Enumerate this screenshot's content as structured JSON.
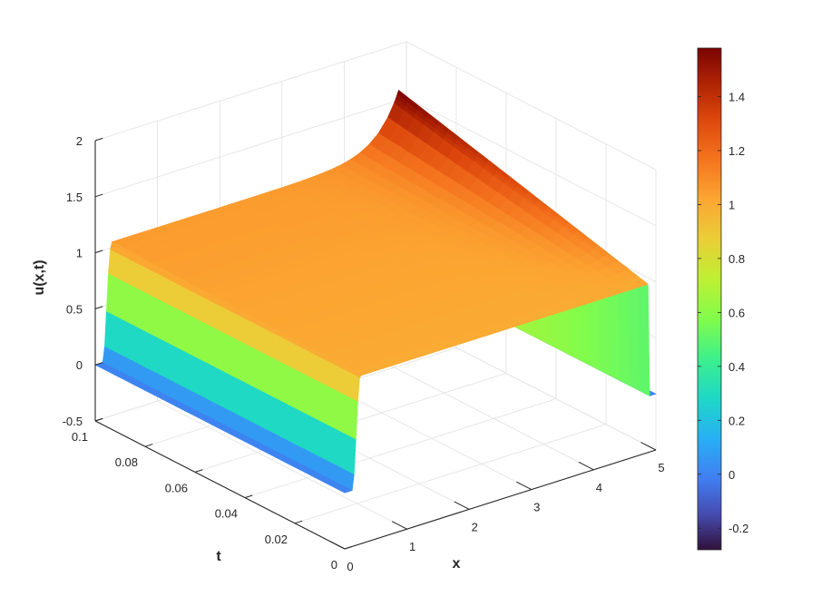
{
  "chart_data": {
    "type": "surface",
    "title": "",
    "xlabel": "x",
    "ylabel": "t",
    "zlabel": "u(x,t)",
    "xlim": [
      0,
      5
    ],
    "ylim": [
      0,
      0.1
    ],
    "zlim": [
      -0.5,
      2
    ],
    "x_ticks": [
      "0",
      "1",
      "2",
      "3",
      "4",
      "5"
    ],
    "t_ticks": [
      "0",
      "0.02",
      "0.04",
      "0.06",
      "0.08",
      "0.1"
    ],
    "z_ticks": [
      "-0.5",
      "0",
      "0.5",
      "1",
      "1.5",
      "2"
    ],
    "grid": true,
    "colormap": "turbo",
    "colorbar": {
      "range": [
        -0.28,
        1.58
      ],
      "ticks": [
        "-0.2",
        "0",
        "0.2",
        "0.4",
        "0.6",
        "0.8",
        "1",
        "1.2",
        "1.4"
      ],
      "location": "right"
    },
    "surface": {
      "description_free": true,
      "x_samples": [
        0,
        0.1,
        0.2,
        0.5,
        1,
        1.5,
        2,
        2.5,
        3,
        3.5,
        4,
        4.5,
        4.8,
        4.9,
        5
      ],
      "t_samples": [
        0,
        0.01,
        0.02,
        0.03,
        0.04,
        0.05,
        0.06,
        0.07,
        0.08,
        0.09,
        0.1
      ],
      "u_at_t0": [
        0,
        0,
        0,
        1,
        1,
        1,
        1,
        1,
        1,
        1,
        1,
        1,
        1,
        0,
        0
      ],
      "u_at_t01_right_edge": 1.58
    }
  }
}
